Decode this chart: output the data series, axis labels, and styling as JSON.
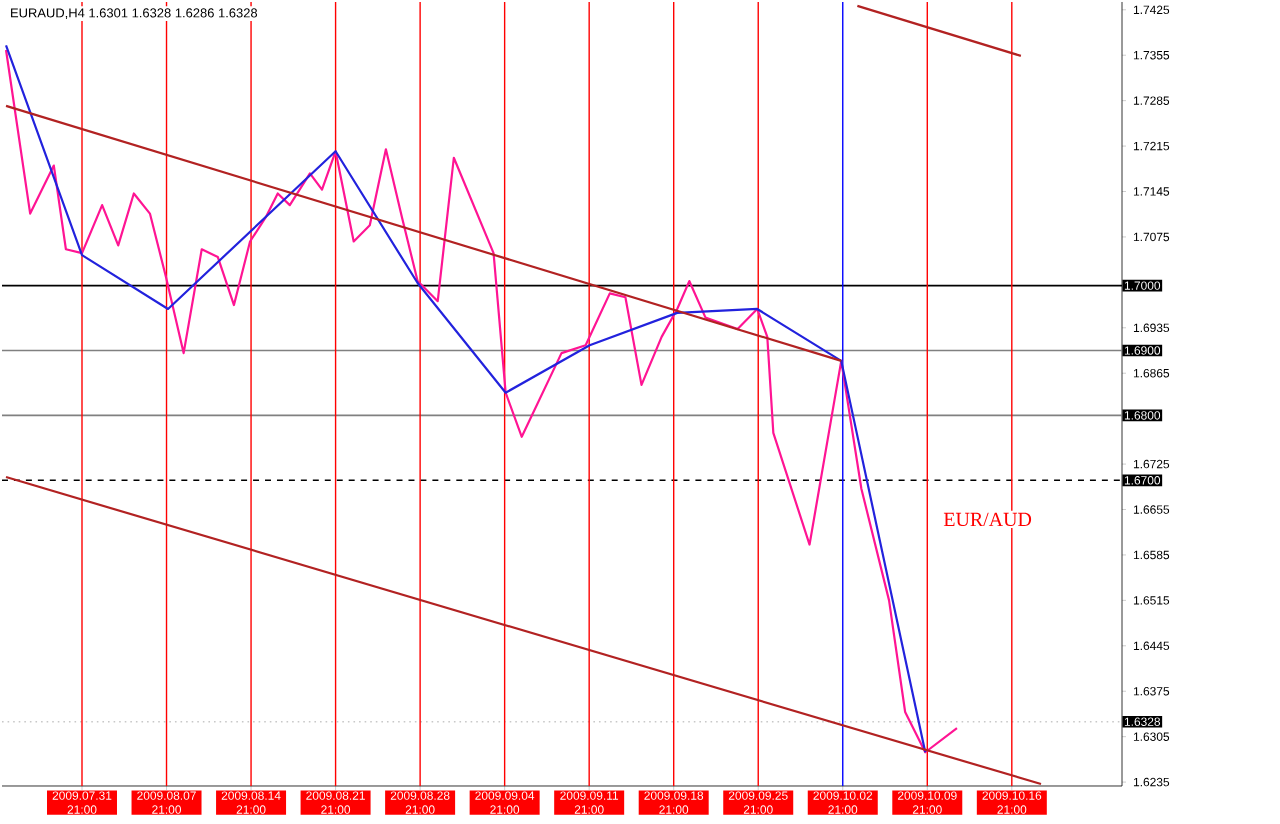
{
  "chart_data": {
    "type": "line",
    "title": "EURAUD,H4  1.6301 1.6328 1.6286 1.6328",
    "annotations": [
      "EUR/AUD"
    ],
    "xlim": [
      "2009-07-25T06:00",
      "2009-10-26T00:00"
    ],
    "ylim": [
      1.6229,
      1.7437
    ],
    "xticks": [
      {
        "value": "2009-07-31T21:00",
        "label": "2009.07.31 21:00"
      },
      {
        "value": "2009-08-07T21:00",
        "label": "2009.08.07 21:00"
      },
      {
        "value": "2009-08-14T21:00",
        "label": "2009.08.14 21:00"
      },
      {
        "value": "2009-08-21T21:00",
        "label": "2009.08.21 21:00"
      },
      {
        "value": "2009-08-28T21:00",
        "label": "2009.08.28 21:00"
      },
      {
        "value": "2009-09-04T21:00",
        "label": "2009.09.04 21:00"
      },
      {
        "value": "2009-09-11T21:00",
        "label": "2009.09.11 21:00"
      },
      {
        "value": "2009-09-18T21:00",
        "label": "2009.09.18 21:00"
      },
      {
        "value": "2009-09-25T21:00",
        "label": "2009.09.25 21:00"
      },
      {
        "value": "2009-10-02T21:00",
        "label": "2009.10.02 21:00"
      },
      {
        "value": "2009-10-09T21:00",
        "label": "2009.10.09 21:00"
      },
      {
        "value": "2009-10-16T21:00",
        "label": "2009.10.16 21:00"
      }
    ],
    "yticks": [
      1.6235,
      1.6305,
      1.6375,
      1.6445,
      1.6515,
      1.6585,
      1.6655,
      1.6725,
      1.6865,
      1.6935,
      1.7075,
      1.7145,
      1.7215,
      1.7285,
      1.7355,
      1.7425
    ],
    "grid": false,
    "ref_lines": [
      {
        "axis": "y",
        "value": 1.7,
        "label": "1.7000",
        "color": "#000000",
        "line_style": "solid"
      },
      {
        "axis": "y",
        "value": 1.69,
        "label": "1.6900",
        "color": "#808080",
        "line_style": "solid"
      },
      {
        "axis": "y",
        "value": 1.68,
        "label": "1.6800",
        "color": "#808080",
        "line_style": "solid"
      },
      {
        "axis": "y",
        "value": 1.67,
        "label": "1.6700",
        "color": "#000000",
        "line_style": "dashed"
      },
      {
        "axis": "y",
        "value": 1.6328,
        "label": "1.6328",
        "color": "#c8c8c8",
        "line_style": "dotted"
      },
      {
        "axis": "x",
        "value": "2009-07-31T21:00",
        "color": "#ff0000"
      },
      {
        "axis": "x",
        "value": "2009-08-07T21:00",
        "color": "#ff0000"
      },
      {
        "axis": "x",
        "value": "2009-08-14T21:00",
        "color": "#ff0000"
      },
      {
        "axis": "x",
        "value": "2009-08-21T21:00",
        "color": "#ff0000"
      },
      {
        "axis": "x",
        "value": "2009-08-28T21:00",
        "color": "#ff0000"
      },
      {
        "axis": "x",
        "value": "2009-09-04T21:00",
        "color": "#ff0000"
      },
      {
        "axis": "x",
        "value": "2009-09-11T21:00",
        "color": "#ff0000"
      },
      {
        "axis": "x",
        "value": "2009-09-18T21:00",
        "color": "#ff0000"
      },
      {
        "axis": "x",
        "value": "2009-09-25T21:00",
        "color": "#ff0000"
      },
      {
        "axis": "x",
        "value": "2009-10-02T21:00",
        "color": "#0000ff"
      },
      {
        "axis": "x",
        "value": "2009-10-09T21:00",
        "color": "#ff0000"
      },
      {
        "axis": "x",
        "value": "2009-10-16T21:00",
        "color": "#ff0000"
      }
    ],
    "series": [
      {
        "color": "#ff1493",
        "x": [
          "2009-07-25T14:00",
          "2009-07-27T14:00",
          "2009-07-29T13:00",
          "2009-07-30T13:00",
          "2009-07-31T21:00",
          "2009-08-02T13:00",
          "2009-08-03T21:00",
          "2009-08-05T04:00",
          "2009-08-06T12:00",
          "2009-08-07T20:00",
          "2009-08-09T07:00",
          "2009-08-10T19:00",
          "2009-08-12T03:00",
          "2009-08-13T11:00",
          "2009-08-14T19:00",
          "2009-08-16T02:00",
          "2009-08-17T02:00",
          "2009-08-18T02:00",
          "2009-08-19T18:00",
          "2009-08-20T18:00",
          "2009-08-21T21:00",
          "2009-08-23T09:00",
          "2009-08-24T17:00",
          "2009-08-26T01:00",
          "2009-08-27T09:00",
          "2009-08-28T16:00",
          "2009-08-30T08:00",
          "2009-08-31T16:00",
          "2009-09-03T23:00",
          "2009-09-04T23:00",
          "2009-09-06T07:00",
          "2009-09-09T14:00",
          "2009-09-11T14:00",
          "2009-09-13T14:00",
          "2009-09-14T21:00",
          "2009-09-16T05:00",
          "2009-09-17T21:00",
          "2009-09-19T04:00",
          "2009-09-20T04:00",
          "2009-09-21T12:00",
          "2009-09-24T04:00",
          "2009-09-25T19:00",
          "2009-09-26T15:00",
          "2009-09-27T03:00",
          "2009-09-30T03:00",
          "2009-10-02T18:00",
          "2009-10-04T10:00",
          "2009-10-06T17:00",
          "2009-10-08T01:00",
          "2009-10-09T17:00",
          "2009-10-12T08:00"
        ],
        "values": [
          1.7363,
          1.7111,
          1.7185,
          1.7056,
          1.705,
          1.7124,
          1.7062,
          1.7142,
          1.7111,
          1.7013,
          1.6896,
          1.7056,
          1.7044,
          1.697,
          1.7068,
          1.7105,
          1.7142,
          1.7124,
          1.7173,
          1.7148,
          1.7207,
          1.7068,
          1.7093,
          1.721,
          1.7105,
          1.7007,
          1.6976,
          1.7197,
          1.705,
          1.6835,
          1.6767,
          1.6896,
          1.6908,
          1.6988,
          1.6982,
          1.6847,
          1.6921,
          1.6964,
          1.7007,
          1.6951,
          1.6933,
          1.6964,
          1.6921,
          1.6773,
          1.6601,
          1.6884,
          1.6687,
          1.6515,
          1.6343,
          1.6281,
          1.6318
        ]
      },
      {
        "color": "#2222dd",
        "x": [
          "2009-07-25T14:00",
          "2009-07-31T21:00",
          "2009-08-08T00:00",
          "2009-08-21T21:00",
          "2009-08-28T16:00",
          "2009-09-04T23:00",
          "2009-09-11T22:00",
          "2009-09-19T04:00",
          "2009-09-25T19:00",
          "2009-10-02T18:00",
          "2009-10-09T17:00"
        ],
        "values": [
          1.737,
          1.7047,
          1.6964,
          1.7207,
          1.7004,
          1.6835,
          1.6908,
          1.6958,
          1.6964,
          1.6884,
          1.6281
        ]
      },
      {
        "color": "#b22222",
        "x": [
          "2009-07-25T14:00",
          "2009-10-02T18:00"
        ],
        "values": [
          1.7277,
          1.6884
        ]
      },
      {
        "color": "#b22222",
        "x": [
          "2009-07-25T14:00",
          "2009-10-19T07:00"
        ],
        "values": [
          1.6705,
          1.6232
        ]
      },
      {
        "color": "#b22222",
        "x": [
          "2009-10-04T02:00",
          "2009-10-17T15:00"
        ],
        "values": [
          1.7431,
          1.7354
        ]
      }
    ]
  }
}
